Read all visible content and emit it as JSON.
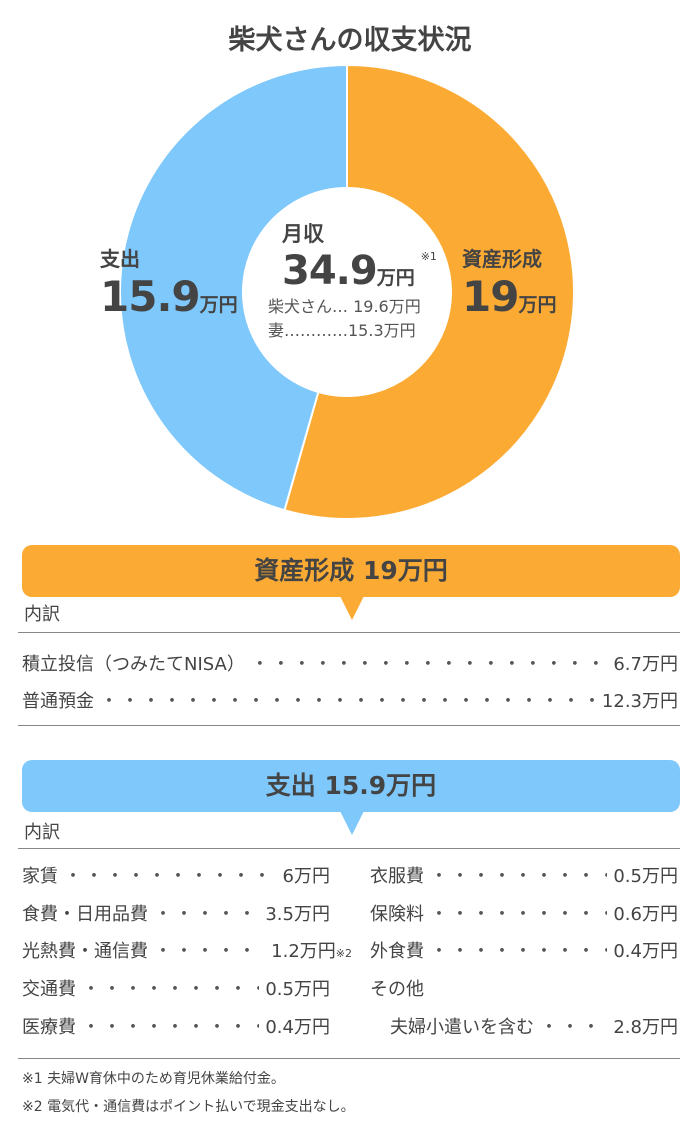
{
  "title": "柴犬さんの収支状況",
  "chart_data": {
    "type": "pie",
    "donut": true,
    "categories": [
      "資産形成",
      "支出"
    ],
    "values": [
      19,
      15.9
    ],
    "unit": "万円",
    "colors": [
      "#fbab34",
      "#7ec8fb"
    ],
    "title": "柴犬さんの収支状況"
  },
  "labels": {
    "asset": {
      "name": "資産形成",
      "value": "19",
      "unit": "万円"
    },
    "expense": {
      "name": "支出",
      "value": "15.9",
      "unit": "万円"
    }
  },
  "center": {
    "name": "月収",
    "value": "34.9",
    "unit": "万円",
    "note": "※1",
    "lines": [
      "柴犬さん… 19.6万円",
      "妻…………15.3万円"
    ]
  },
  "asset_section": {
    "header": "資産形成 19万円",
    "breakdown_label": "内訳",
    "items": [
      {
        "label": "積立投信（つみたてNISA）",
        "value": "6.7万円"
      },
      {
        "label": "普通預金",
        "value": "12.3万円"
      }
    ]
  },
  "expense_section": {
    "header": "支出 15.9万円",
    "breakdown_label": "内訳",
    "left": [
      {
        "label": "家賃",
        "value": "6万円"
      },
      {
        "label": "食費・日用品費",
        "value": "3.5万円"
      },
      {
        "label": "光熱費・通信費",
        "value": "1.2万円",
        "note": "※2"
      },
      {
        "label": "交通費",
        "value": "0.5万円"
      },
      {
        "label": "医療費",
        "value": "0.4万円"
      }
    ],
    "right": [
      {
        "label": "衣服費",
        "value": "0.5万円"
      },
      {
        "label": "保険料",
        "value": "0.6万円"
      },
      {
        "label": "外食費",
        "value": "0.4万円"
      },
      {
        "label": "その他"
      },
      {
        "label": "夫婦小遣いを含む",
        "value": "2.8万円"
      }
    ]
  },
  "footnotes": [
    "※1 夫婦W育休中のため育児休業給付金。",
    "※2 電気代・通信費はポイント払いで現金支出なし。"
  ],
  "dots": "・・・・・・・・・・・・・・・・・・・・・・・・・・・・・・・・・・・・・・・・・・"
}
